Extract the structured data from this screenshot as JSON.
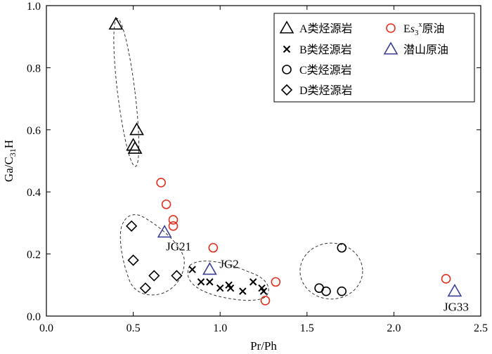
{
  "chart_data": {
    "type": "scatter",
    "xlabel": "Pr/Ph",
    "ylabel": "Ga/C31H",
    "xlim": [
      0,
      2.5
    ],
    "ylim": [
      0,
      1.0
    ],
    "xticks": [
      "0.0",
      "0.5",
      "1.0",
      "1.5",
      "2.0",
      "2.5"
    ],
    "yticks": [
      "0.0",
      "0.2",
      "0.4",
      "0.6",
      "0.8",
      "1.0"
    ],
    "legend_position": "top-right",
    "series": [
      {
        "name": "A类烃源岩",
        "marker": "triangle-open",
        "color": "#000000",
        "points": [
          [
            0.4,
            0.94
          ],
          [
            0.52,
            0.6
          ],
          [
            0.5,
            0.55
          ],
          [
            0.51,
            0.54
          ]
        ]
      },
      {
        "name": "B类烃源岩",
        "marker": "x",
        "color": "#000000",
        "points": [
          [
            0.84,
            0.15
          ],
          [
            0.89,
            0.11
          ],
          [
            0.94,
            0.11
          ],
          [
            1.0,
            0.09
          ],
          [
            1.05,
            0.1
          ],
          [
            1.06,
            0.09
          ],
          [
            1.13,
            0.08
          ],
          [
            1.19,
            0.11
          ],
          [
            1.24,
            0.09
          ],
          [
            1.25,
            0.08
          ]
        ]
      },
      {
        "name": "C类烃源岩",
        "marker": "circle-open",
        "color": "#000000",
        "points": [
          [
            1.7,
            0.22
          ],
          [
            1.57,
            0.09
          ],
          [
            1.61,
            0.08
          ],
          [
            1.7,
            0.08
          ]
        ]
      },
      {
        "name": "D类烃源岩",
        "marker": "diamond-open",
        "color": "#000000",
        "points": [
          [
            0.49,
            0.29
          ],
          [
            0.5,
            0.18
          ],
          [
            0.62,
            0.13
          ],
          [
            0.57,
            0.09
          ],
          [
            0.75,
            0.13
          ]
        ]
      },
      {
        "name": "Es3x原油",
        "marker": "circle-open",
        "color": "#e0321e",
        "points": [
          [
            0.66,
            0.43
          ],
          [
            0.69,
            0.36
          ],
          [
            0.73,
            0.31
          ],
          [
            0.73,
            0.29
          ],
          [
            0.96,
            0.22
          ],
          [
            1.32,
            0.11
          ],
          [
            1.26,
            0.05
          ],
          [
            2.3,
            0.12
          ]
        ]
      },
      {
        "name": "潜山原油",
        "marker": "triangle-open",
        "color": "#3a3f95",
        "points": [
          [
            0.68,
            0.27
          ],
          [
            0.94,
            0.15
          ],
          [
            2.35,
            0.08
          ]
        ]
      }
    ],
    "annotations": [
      {
        "text": "JG21",
        "x": 0.68,
        "y": 0.27
      },
      {
        "text": "JG2",
        "x": 0.94,
        "y": 0.15
      },
      {
        "text": "JG33",
        "x": 2.35,
        "y": 0.08
      }
    ],
    "groups": [
      {
        "name": "A",
        "center": [
          0.46,
          0.72
        ],
        "radius": [
          0.05,
          0.24
        ],
        "rotation": -7
      },
      {
        "name": "C",
        "center": [
          1.64,
          0.145
        ],
        "radius": [
          0.18,
          0.09
        ],
        "rotation": 0
      }
    ]
  }
}
